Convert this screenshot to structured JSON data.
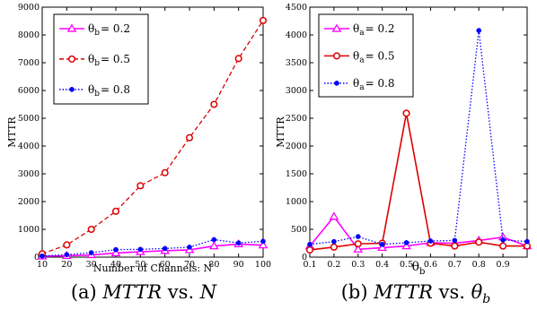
{
  "chart_data": [
    {
      "type": "line",
      "caption": {
        "prefix": "(a) ",
        "lhs": "MTTR",
        "vs": " vs. ",
        "rhs": "N"
      },
      "xlabel": "Number of Channels: N",
      "ylabel": "MTTR",
      "xlim": [
        10,
        100
      ],
      "ylim": [
        0,
        9000
      ],
      "xticks": [
        "10",
        "20",
        "30",
        "40",
        "50",
        "60",
        "70",
        "80",
        "90",
        "100"
      ],
      "yticks": [
        "0",
        "1000",
        "2000",
        "3000",
        "4000",
        "5000",
        "6000",
        "7000",
        "8000",
        "9000"
      ],
      "grid": false,
      "legend_position": "top-left",
      "x": [
        10,
        20,
        30,
        40,
        50,
        60,
        70,
        80,
        90,
        100
      ],
      "series": [
        {
          "name": "θ_b = 0.2",
          "legend_symbol": "θ",
          "legend_sub": "b",
          "legend_value": "= 0.2",
          "color": "#ff00ff",
          "line": "solid",
          "marker": "triangle",
          "values": [
            30,
            50,
            80,
            150,
            190,
            230,
            260,
            400,
            470,
            430
          ]
        },
        {
          "name": "θ_b = 0.5",
          "legend_symbol": "θ",
          "legend_sub": "b",
          "legend_value": "= 0.5",
          "color": "#dd0000",
          "line": "dashed",
          "marker": "circle",
          "values": [
            120,
            440,
            1000,
            1650,
            2570,
            3040,
            4300,
            5500,
            7150,
            8520
          ]
        },
        {
          "name": "θ_b = 0.8",
          "legend_symbol": "θ",
          "legend_sub": "b",
          "legend_value": "= 0.8",
          "color": "#0000ff",
          "line": "dotted",
          "marker": "dot",
          "values": [
            40,
            90,
            160,
            270,
            280,
            310,
            360,
            630,
            510,
            570
          ]
        }
      ]
    },
    {
      "type": "line",
      "caption": {
        "prefix": "(b) ",
        "lhs": "MTTR",
        "vs": " vs. ",
        "rhs": "θ",
        "rhs_sub": "b"
      },
      "xlabel": "θ",
      "xlabel_sub": "b",
      "ylabel": "MTTR",
      "xlim": [
        0.1,
        1.0
      ],
      "ylim": [
        0,
        4500
      ],
      "xticks": [
        "0.1",
        "0.2",
        "0.3",
        "0.4",
        "0.5",
        "0.6",
        "0.7",
        "0.8",
        "0.9"
      ],
      "yticks": [
        "0",
        "500",
        "1000",
        "1500",
        "2000",
        "2500",
        "3000",
        "3500",
        "4000",
        "4500"
      ],
      "grid": false,
      "legend_position": "top-left",
      "x": [
        0.1,
        0.2,
        0.3,
        0.4,
        0.5,
        0.6,
        0.7,
        0.8,
        0.9,
        1.0
      ],
      "series": [
        {
          "name": "θ_a = 0.2",
          "legend_symbol": "θ",
          "legend_sub": "a",
          "legend_value": "= 0.2",
          "color": "#ff00ff",
          "line": "solid",
          "marker": "triangle",
          "values": [
            200,
            730,
            140,
            170,
            200,
            260,
            250,
            300,
            360,
            200
          ]
        },
        {
          "name": "θ_a = 0.5",
          "legend_symbol": "θ",
          "legend_sub": "a",
          "legend_value": "= 0.5",
          "color": "#dd0000",
          "line": "solid",
          "marker": "circle",
          "values": [
            130,
            180,
            240,
            250,
            2590,
            250,
            200,
            270,
            200,
            200
          ]
        },
        {
          "name": "θ_a = 0.8",
          "legend_symbol": "θ",
          "legend_sub": "a",
          "legend_value": "= 0.8",
          "color": "#0000ff",
          "line": "dotted",
          "marker": "dot",
          "values": [
            230,
            280,
            370,
            230,
            260,
            290,
            300,
            4080,
            310,
            280
          ]
        }
      ]
    }
  ]
}
